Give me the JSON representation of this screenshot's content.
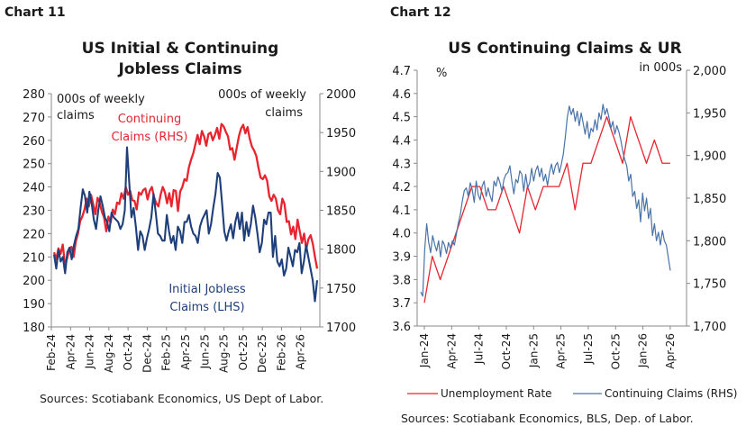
{
  "chart11": {
    "label": "Chart 11",
    "source": "Sources: Scotiabank Economics, US Dept of Labor."
  },
  "chart12": {
    "label": "Chart 12",
    "source": "Sources: Scotiabank Economics, BLS, Dep. of Labor."
  },
  "colors": {
    "red": "#e8242f",
    "navy": "#1f3f7a",
    "blue": "#4a72a8"
  },
  "chart_data": [
    {
      "type": "line",
      "title": "US Initial & Continuing Jobless Claims",
      "title_lines": [
        "US Initial & Continuing",
        "Jobless Claims"
      ],
      "yleft": {
        "label_lines": [
          "000s of weekly",
          "claims"
        ],
        "range": [
          180,
          280
        ],
        "ticks": [
          180,
          190,
          200,
          210,
          220,
          230,
          240,
          250,
          260,
          270,
          280
        ]
      },
      "yright": {
        "label_lines": [
          "000s of weekly",
          "claims"
        ],
        "range": [
          1700,
          2000
        ],
        "ticks": [
          1700,
          1750,
          1800,
          1850,
          1900,
          1950,
          2000
        ]
      },
      "x": {
        "start": "2024-02",
        "end": "2026-05",
        "tick_labels": [
          "Feb-24",
          "Apr-24",
          "Jun-24",
          "Aug-24",
          "Oct-24",
          "Dec-24",
          "Feb-25",
          "Apr-25",
          "Jun-25",
          "Aug-25",
          "Oct-25",
          "Dec-25",
          "Feb-26",
          "Apr-26"
        ]
      },
      "grid": false,
      "series": [
        {
          "name": "Initial Jobless Claims (LHS)",
          "label_lines": [
            "Initial Jobless",
            "Claims (LHS)"
          ],
          "axis": "left",
          "color": "#1f3f7a",
          "values": [
            211,
            205,
            213,
            208,
            210,
            203,
            212,
            214,
            209,
            215,
            219,
            222,
            231,
            239,
            236,
            229,
            238,
            233,
            226,
            222,
            230,
            236,
            232,
            227,
            225,
            221,
            229,
            227,
            226,
            225,
            222,
            224,
            230,
            257,
            242,
            227,
            231,
            223,
            213,
            221,
            219,
            213,
            218,
            222,
            227,
            237,
            229,
            220,
            219,
            217,
            217,
            228,
            221,
            216,
            219,
            213,
            223,
            221,
            216,
            225,
            225,
            228,
            223,
            220,
            219,
            216,
            223,
            226,
            228,
            230,
            220,
            224,
            231,
            237,
            246,
            244,
            233,
            221,
            217,
            221,
            224,
            218,
            225,
            229,
            222,
            229,
            217,
            225,
            219,
            224,
            232,
            227,
            220,
            212,
            216,
            226,
            224,
            229,
            229,
            210,
            219,
            208,
            206,
            209,
            202,
            205,
            214,
            210,
            206,
            213,
            212,
            216,
            203,
            208,
            215,
            210,
            205,
            200,
            191,
            200
          ]
        },
        {
          "name": "Continuing Claims (RHS)",
          "label_lines": [
            "Continuing",
            "Claims (RHS)"
          ],
          "axis": "right",
          "color": "#e8242f",
          "values": [
            1796,
            1787,
            1801,
            1794,
            1806,
            1781,
            1788,
            1800,
            1803,
            1790,
            1810,
            1820,
            1836,
            1842,
            1851,
            1865,
            1855,
            1870,
            1858,
            1845,
            1866,
            1860,
            1848,
            1841,
            1823,
            1842,
            1834,
            1851,
            1845,
            1860,
            1858,
            1872,
            1865,
            1880,
            1870,
            1875,
            1863,
            1862,
            1851,
            1873,
            1870,
            1876,
            1878,
            1864,
            1875,
            1880,
            1867,
            1859,
            1855,
            1870,
            1880,
            1873,
            1859,
            1872,
            1855,
            1876,
            1875,
            1849,
            1874,
            1880,
            1890,
            1888,
            1905,
            1915,
            1923,
            1935,
            1947,
            1935,
            1952,
            1945,
            1933,
            1948,
            1950,
            1940,
            1947,
            1956,
            1942,
            1961,
            1958,
            1951,
            1945,
            1928,
            1930,
            1915,
            1930,
            1945,
            1955,
            1960,
            1949,
            1957,
            1942,
            1932,
            1927,
            1920,
            1905,
            1892,
            1890,
            1895,
            1888,
            1868,
            1862,
            1870,
            1865,
            1850,
            1845,
            1865,
            1858,
            1835,
            1836,
            1819,
            1829,
            1813,
            1838,
            1823,
            1808,
            1820,
            1800,
            1813,
            1818,
            1807,
            1790,
            1775
          ]
        }
      ]
    },
    {
      "type": "line",
      "title": "US Continuing Claims & UR",
      "yleft": {
        "label": "%",
        "range": [
          3.6,
          4.7
        ],
        "ticks": [
          3.6,
          3.7,
          3.8,
          3.9,
          4.0,
          4.1,
          4.2,
          4.3,
          4.4,
          4.5,
          4.6,
          4.7
        ]
      },
      "yright": {
        "label": "in 000s",
        "range": [
          1700,
          2000
        ],
        "ticks": [
          "1,700",
          "1,750",
          "1,800",
          "1,850",
          "1,900",
          "1,950",
          "2,000"
        ]
      },
      "x": {
        "tick_labels": [
          "Jan-24",
          "Apr-24",
          "Jul-24",
          "Oct-24",
          "Jan-25",
          "Apr-25",
          "Jul-25",
          "Oct-25",
          "Jan-26",
          "Apr-26"
        ]
      },
      "grid": false,
      "legend": "bottom",
      "series": [
        {
          "name": "Unemployment Rate",
          "axis": "left",
          "color": "#e8242f",
          "x": [
            0,
            1,
            2,
            3,
            4,
            5,
            6,
            7,
            8,
            9,
            10,
            11,
            12,
            13,
            14,
            15,
            16,
            17,
            18,
            19,
            20,
            21,
            22,
            23,
            24,
            25,
            26,
            27,
            28,
            29,
            30,
            31
          ],
          "values": [
            3.7,
            3.9,
            3.8,
            3.9,
            4.0,
            4.1,
            4.2,
            4.2,
            4.1,
            4.1,
            4.2,
            4.1,
            4.0,
            4.2,
            4.1,
            4.2,
            4.2,
            4.2,
            4.3,
            4.1,
            4.3,
            4.3,
            4.4,
            4.5,
            4.4,
            4.3,
            4.5,
            4.4,
            4.3,
            4.4,
            4.3,
            4.3
          ]
        },
        {
          "name": "Continuing Claims (RHS)",
          "axis": "right",
          "color": "#4a72a8",
          "values": [
            1740,
            1735,
            1790,
            1820,
            1798,
            1786,
            1806,
            1796,
            1788,
            1800,
            1781,
            1800,
            1795,
            1785,
            1798,
            1791,
            1800,
            1795,
            1808,
            1821,
            1831,
            1847,
            1859,
            1862,
            1852,
            1868,
            1860,
            1845,
            1870,
            1854,
            1848,
            1864,
            1870,
            1852,
            1862,
            1853,
            1846,
            1870,
            1864,
            1875,
            1868,
            1858,
            1872,
            1878,
            1880,
            1888,
            1870,
            1855,
            1872,
            1868,
            1882,
            1878,
            1858,
            1878,
            1862,
            1868,
            1885,
            1870,
            1882,
            1888,
            1875,
            1885,
            1870,
            1878,
            1865,
            1880,
            1890,
            1878,
            1888,
            1892,
            1880,
            1890,
            1902,
            1922,
            1945,
            1958,
            1948,
            1955,
            1940,
            1952,
            1935,
            1950,
            1938,
            1925,
            1940,
            1920,
            1932,
            1928,
            1942,
            1930,
            1950,
            1942,
            1960,
            1948,
            1955,
            1945,
            1932,
            1940,
            1925,
            1935,
            1928,
            1918,
            1905,
            1895,
            1888,
            1870,
            1878,
            1852,
            1858,
            1838,
            1848,
            1822,
            1856,
            1835,
            1850,
            1826,
            1838,
            1806,
            1820,
            1800,
            1810,
            1795,
            1812,
            1800,
            1795,
            1780,
            1765
          ]
        }
      ]
    }
  ]
}
